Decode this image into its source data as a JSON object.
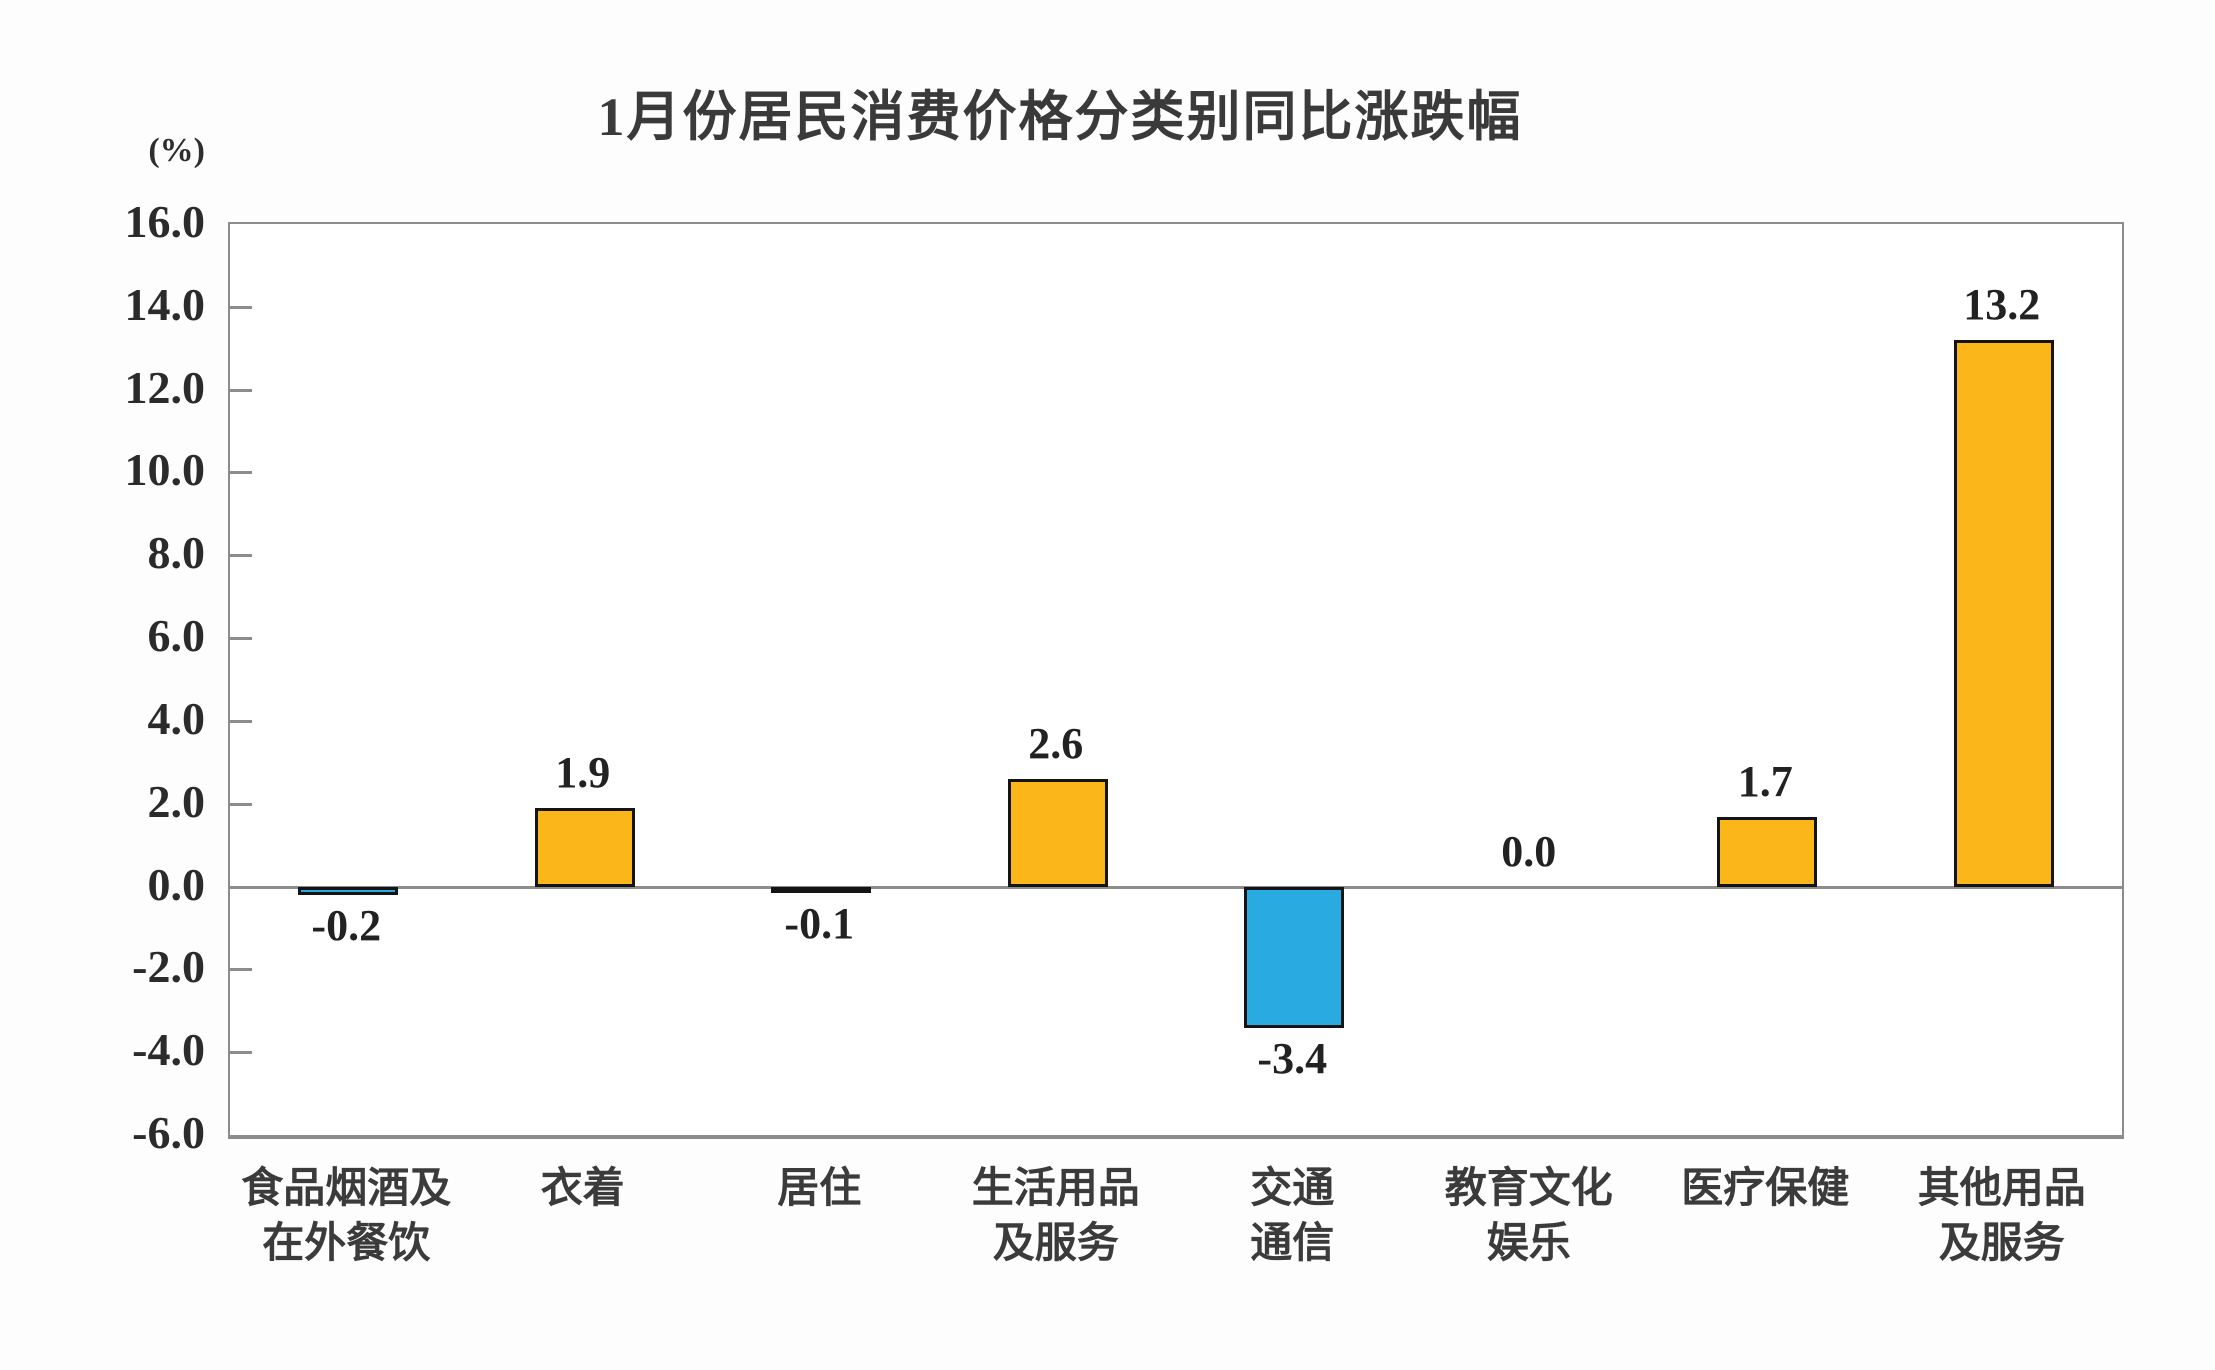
{
  "chart_data": {
    "type": "bar",
    "title": "1月份居民消费价格分类别同比涨跌幅",
    "y_axis_unit": "(%)",
    "categories": [
      [
        "食品烟酒及",
        "在外餐饮"
      ],
      [
        "衣着"
      ],
      [
        "居住"
      ],
      [
        "生活用品",
        "及服务"
      ],
      [
        "交通",
        "通信"
      ],
      [
        "教育文化",
        "娱乐"
      ],
      [
        "医疗保健"
      ],
      [
        "其他用品",
        "及服务"
      ]
    ],
    "values": [
      -0.2,
      1.9,
      -0.1,
      2.6,
      -3.4,
      0.0,
      1.7,
      13.2
    ],
    "value_labels": [
      "-0.2",
      "1.9",
      "-0.1",
      "2.6",
      "-3.4",
      "0.0",
      "1.7",
      "13.2"
    ],
    "y_axis": {
      "min": -6.0,
      "max": 16.0,
      "step": 2.0,
      "tick_labels": [
        "16.0",
        "14.0",
        "12.0",
        "10.0",
        "8.0",
        "6.0",
        "4.0",
        "2.0",
        "0.0",
        "-2.0",
        "-4.0",
        "-6.0"
      ]
    },
    "colors": {
      "positive_bar": "#FBB71A",
      "negative_bar": "#29ABE2",
      "bar_border": "#141414",
      "axis": "#8C8C8C",
      "text": "#2B2B2B"
    },
    "grid": "off",
    "legend": "none"
  }
}
